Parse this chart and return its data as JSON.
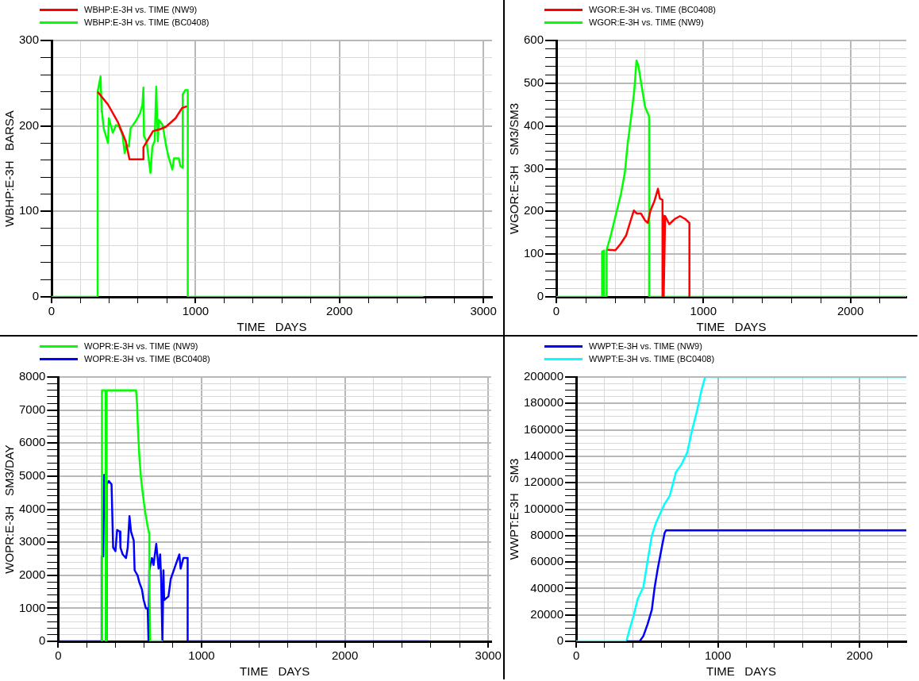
{
  "chart_data": [
    {
      "type": "line",
      "xlabel": "TIME   DAYS",
      "ylabel": "WBHP:E-3H   BARSA",
      "legend": "top left",
      "grid": true,
      "xlim": [
        0,
        3060
      ],
      "ylim": [
        0,
        300
      ],
      "xticks": [
        0,
        {
          "value": 200,
          "label": null
        },
        {
          "value": 400,
          "label": null
        },
        {
          "value": 600,
          "label": null
        },
        {
          "value": 800,
          "label": null
        },
        1000,
        {
          "value": 1200,
          "label": null
        },
        {
          "value": 1400,
          "label": null
        },
        {
          "value": 1600,
          "label": null
        },
        {
          "value": 1800,
          "label": null
        },
        2000,
        {
          "value": 2200,
          "label": null
        },
        {
          "value": 2400,
          "label": null
        },
        {
          "value": 2600,
          "label": null
        },
        {
          "value": 2800,
          "label": null
        },
        3000
      ],
      "yticks": [
        0,
        {
          "value": 20,
          "label": null
        },
        {
          "value": 40,
          "label": null
        },
        {
          "value": 60,
          "label": null
        },
        {
          "value": 80,
          "label": null
        },
        100,
        {
          "value": 120,
          "label": null
        },
        {
          "value": 140,
          "label": null
        },
        {
          "value": 160,
          "label": null
        },
        {
          "value": 180,
          "label": null
        },
        200,
        {
          "value": 220,
          "label": null
        },
        {
          "value": 240,
          "label": null
        },
        {
          "value": 260,
          "label": null
        },
        {
          "value": 280,
          "label": null
        },
        300
      ],
      "series": [
        {
          "name": "WBHP:E-3H vs. TIME (NW9)",
          "color": "#ff0000",
          "x": [
            320,
            392,
            459,
            515,
            541,
            638,
            638,
            705,
            750,
            794,
            861,
            906,
            940
          ],
          "values": [
            240,
            225,
            205,
            182,
            161,
            161,
            175,
            194,
            196,
            199,
            209,
            221,
            223
          ]
        },
        {
          "name": "WBHP:E-3H vs. TIME (BC0408)",
          "color": "#00ff00",
          "x": [
            0,
            320,
            320,
            340,
            348,
            351,
            362,
            392,
            398,
            425,
            447,
            470,
            492,
            508,
            519,
            537,
            548,
            582,
            615,
            631,
            638,
            642,
            660,
            671,
            687,
            700,
            716,
            727,
            738,
            745,
            772,
            794,
            812,
            839,
            850,
            884,
            895,
            911,
            911,
            929,
            946,
            946,
            2584
          ],
          "values": [
            0,
            0,
            240,
            258,
            217,
            215,
            197,
            180,
            209,
            192,
            201,
            199,
            190,
            168,
            178,
            176,
            197,
            205,
            215,
            225,
            245,
            188,
            182,
            166,
            145,
            176,
            182,
            246,
            182,
            207,
            201,
            178,
            164,
            149,
            162,
            162,
            153,
            151,
            237,
            242,
            242,
            0,
            0
          ]
        }
      ]
    },
    {
      "type": "line",
      "xlabel": "TIME   DAYS",
      "ylabel": "WGOR:E-3H   SM3/SM3",
      "legend": "top left",
      "grid": true,
      "xlim": [
        0,
        2380
      ],
      "ylim": [
        0,
        600
      ],
      "xticks": [
        0,
        {
          "value": 200,
          "label": null
        },
        {
          "value": 400,
          "label": null
        },
        {
          "value": 600,
          "label": null
        },
        {
          "value": 800,
          "label": null
        },
        1000,
        {
          "value": 1200,
          "label": null
        },
        {
          "value": 1400,
          "label": null
        },
        {
          "value": 1600,
          "label": null
        },
        {
          "value": 1800,
          "label": null
        },
        2000,
        {
          "value": 2200,
          "label": null
        }
      ],
      "yticks": [
        0,
        {
          "value": 20,
          "label": null
        },
        {
          "value": 40,
          "label": null
        },
        {
          "value": 60,
          "label": null
        },
        {
          "value": 80,
          "label": null
        },
        100,
        {
          "value": 120,
          "label": null
        },
        {
          "value": 140,
          "label": null
        },
        {
          "value": 160,
          "label": null
        },
        {
          "value": 180,
          "label": null
        },
        200,
        {
          "value": 220,
          "label": null
        },
        {
          "value": 240,
          "label": null
        },
        {
          "value": 260,
          "label": null
        },
        {
          "value": 280,
          "label": null
        },
        300,
        {
          "value": 320,
          "label": null
        },
        {
          "value": 340,
          "label": null
        },
        {
          "value": 360,
          "label": null
        },
        {
          "value": 380,
          "label": null
        },
        400,
        {
          "value": 420,
          "label": null
        },
        {
          "value": 440,
          "label": null
        },
        {
          "value": 460,
          "label": null
        },
        {
          "value": 480,
          "label": null
        },
        500,
        {
          "value": 520,
          "label": null
        },
        {
          "value": 540,
          "label": null
        },
        {
          "value": 560,
          "label": null
        },
        {
          "value": 580,
          "label": null
        },
        600
      ],
      "series": [
        {
          "name": "WGOR:E-3H vs. TIME (BC0408)",
          "color": "#ff0000",
          "x": [
            348,
            402,
            439,
            475,
            503,
            527,
            548,
            576,
            603,
            622,
            640,
            667,
            691,
            704,
            722,
            722,
            730,
            730,
            740,
            768,
            804,
            841,
            877,
            905,
            905
          ],
          "values": [
            110,
            109,
            125,
            144,
            176,
            202,
            195,
            195,
            179,
            173,
            202,
            224,
            253,
            230,
            227,
            0,
            190,
            0,
            189,
            170,
            182,
            189,
            182,
            173,
            0
          ]
        },
        {
          "name": "WGOR:E-3H vs. TIME (NW9)",
          "color": "#00ff00",
          "x": [
            0,
            311,
            311,
            325,
            325,
            342,
            342,
            366,
            393,
            420,
            439,
            466,
            484,
            508,
            530,
            545,
            558,
            576,
            603,
            631,
            631,
            2380
          ],
          "values": [
            0,
            0,
            106,
            108,
            0,
            0,
            110,
            138,
            176,
            214,
            240,
            291,
            355,
            419,
            483,
            553,
            541,
            502,
            445,
            422,
            0,
            0
          ]
        }
      ]
    },
    {
      "type": "line",
      "xlabel": "TIME   DAYS",
      "ylabel": "WOPR:E-3H   SM3/DAY",
      "legend": "top left",
      "grid": true,
      "xlim": [
        0,
        3020
      ],
      "ylim": [
        0,
        8000
      ],
      "xticks": [
        0,
        {
          "value": 200,
          "label": null
        },
        {
          "value": 400,
          "label": null
        },
        {
          "value": 600,
          "label": null
        },
        {
          "value": 800,
          "label": null
        },
        1000,
        {
          "value": 1200,
          "label": null
        },
        {
          "value": 1400,
          "label": null
        },
        {
          "value": 1600,
          "label": null
        },
        {
          "value": 1800,
          "label": null
        },
        2000,
        {
          "value": 2200,
          "label": null
        },
        {
          "value": 2400,
          "label": null
        },
        {
          "value": 2600,
          "label": null
        },
        {
          "value": 2800,
          "label": null
        },
        3000
      ],
      "yticks": [
        0,
        {
          "value": 200,
          "label": null
        },
        {
          "value": 400,
          "label": null
        },
        {
          "value": 600,
          "label": null
        },
        {
          "value": 800,
          "label": null
        },
        1000,
        {
          "value": 1200,
          "label": null
        },
        {
          "value": 1400,
          "label": null
        },
        {
          "value": 1600,
          "label": null
        },
        {
          "value": 1800,
          "label": null
        },
        2000,
        {
          "value": 2200,
          "label": null
        },
        {
          "value": 2400,
          "label": null
        },
        {
          "value": 2600,
          "label": null
        },
        {
          "value": 2800,
          "label": null
        },
        3000,
        {
          "value": 3200,
          "label": null
        },
        {
          "value": 3400,
          "label": null
        },
        {
          "value": 3600,
          "label": null
        },
        {
          "value": 3800,
          "label": null
        },
        4000,
        {
          "value": 4200,
          "label": null
        },
        {
          "value": 4400,
          "label": null
        },
        {
          "value": 4600,
          "label": null
        },
        {
          "value": 4800,
          "label": null
        },
        5000,
        {
          "value": 5200,
          "label": null
        },
        {
          "value": 5400,
          "label": null
        },
        {
          "value": 5600,
          "label": null
        },
        {
          "value": 5800,
          "label": null
        },
        6000,
        {
          "value": 6200,
          "label": null
        },
        {
          "value": 6400,
          "label": null
        },
        {
          "value": 6600,
          "label": null
        },
        {
          "value": 6800,
          "label": null
        },
        7000,
        {
          "value": 7200,
          "label": null
        },
        {
          "value": 7400,
          "label": null
        },
        {
          "value": 7600,
          "label": null
        },
        {
          "value": 7800,
          "label": null
        },
        8000
      ],
      "series": [
        {
          "name": "WOPR:E-3H vs. TIME (NW9)",
          "color": "#00ff00",
          "x": [
            303,
            305,
            330,
            332,
            338,
            338,
            543,
            550,
            557,
            566,
            577,
            591,
            607,
            624,
            635,
            635,
            642,
            730
          ],
          "values": [
            0,
            7600,
            7600,
            0,
            0,
            7600,
            7600,
            7180,
            6330,
            5590,
            4960,
            4430,
            3900,
            3470,
            3260,
            2150,
            0,
            0
          ]
        },
        {
          "name": "WOPR:E-3H vs. TIME (BC0408)",
          "color": "#0000ff",
          "x": [
            0,
            303,
            303,
            314,
            321,
            328,
            332,
            332,
            338,
            338,
            353,
            372,
            383,
            399,
            411,
            430,
            434,
            450,
            473,
            485,
            497,
            508,
            527,
            533,
            554,
            566,
            584,
            596,
            612,
            624,
            630,
            635,
            654,
            665,
            684,
            700,
            711,
            718,
            727,
            734,
            739,
            769,
            785,
            815,
            845,
            854,
            873,
            903,
            903,
            2587
          ],
          "values": [
            0,
            0,
            2570,
            2570,
            5040,
            3850,
            3700,
            0,
            0,
            4750,
            4850,
            4750,
            2840,
            2730,
            3370,
            3320,
            2840,
            2630,
            2520,
            2840,
            3790,
            3320,
            3050,
            2150,
            1990,
            1780,
            1570,
            1250,
            1000,
            1000,
            0,
            2150,
            2520,
            2310,
            2950,
            2200,
            2630,
            1890,
            0,
            2150,
            1250,
            1360,
            1890,
            2260,
            2630,
            2200,
            2520,
            2520,
            0,
            0
          ]
        }
      ]
    },
    {
      "type": "line",
      "xlabel": "TIME   DAYS",
      "ylabel": "WWPT:E-3H   SM3",
      "legend": "top left",
      "grid": true,
      "xlim": [
        0,
        2330
      ],
      "ylim": [
        0,
        200000
      ],
      "xticks": [
        0,
        {
          "value": 200,
          "label": null
        },
        {
          "value": 400,
          "label": null
        },
        {
          "value": 600,
          "label": null
        },
        {
          "value": 800,
          "label": null
        },
        1000,
        {
          "value": 1200,
          "label": null
        },
        {
          "value": 1400,
          "label": null
        },
        {
          "value": 1600,
          "label": null
        },
        {
          "value": 1800,
          "label": null
        },
        2000,
        {
          "value": 2200,
          "label": null
        }
      ],
      "yticks": [
        0,
        {
          "value": 5000,
          "label": null
        },
        {
          "value": 10000,
          "label": null
        },
        {
          "value": 15000,
          "label": null
        },
        20000,
        {
          "value": 25000,
          "label": null
        },
        {
          "value": 30000,
          "label": null
        },
        {
          "value": 35000,
          "label": null
        },
        40000,
        {
          "value": 45000,
          "label": null
        },
        {
          "value": 50000,
          "label": null
        },
        {
          "value": 55000,
          "label": null
        },
        60000,
        {
          "value": 65000,
          "label": null
        },
        {
          "value": 70000,
          "label": null
        },
        {
          "value": 75000,
          "label": null
        },
        80000,
        {
          "value": 85000,
          "label": null
        },
        {
          "value": 90000,
          "label": null
        },
        {
          "value": 95000,
          "label": null
        },
        100000,
        {
          "value": 105000,
          "label": null
        },
        {
          "value": 110000,
          "label": null
        },
        {
          "value": 115000,
          "label": null
        },
        120000,
        {
          "value": 125000,
          "label": null
        },
        {
          "value": 130000,
          "label": null
        },
        {
          "value": 135000,
          "label": null
        },
        140000,
        {
          "value": 145000,
          "label": null
        },
        {
          "value": 150000,
          "label": null
        },
        {
          "value": 155000,
          "label": null
        },
        160000,
        {
          "value": 165000,
          "label": null
        },
        {
          "value": 170000,
          "label": null
        },
        {
          "value": 175000,
          "label": null
        },
        180000,
        {
          "value": 185000,
          "label": null
        },
        {
          "value": 190000,
          "label": null
        },
        {
          "value": 195000,
          "label": null
        },
        200000
      ],
      "series": [
        {
          "name": "WWPT:E-3H vs. TIME (NW9)",
          "color": "#0000ff",
          "x": [
            355,
            448,
            474,
            504,
            534,
            554,
            574,
            604,
            624,
            634,
            2330
          ],
          "values": [
            0,
            0,
            4000,
            13000,
            24000,
            41000,
            54000,
            71000,
            82000,
            84000,
            84000
          ]
        },
        {
          "name": "WWPT:E-3H vs. TIME (BC0408)",
          "color": "#00ffff",
          "x": [
            0,
            354,
            374,
            404,
            434,
            474,
            504,
            534,
            564,
            594,
            624,
            660,
            704,
            744,
            784,
            814,
            854,
            884,
            910,
            2330
          ],
          "values": [
            0,
            0,
            8000,
            19000,
            32000,
            41000,
            61000,
            80000,
            90000,
            97000,
            104000,
            110000,
            128000,
            134000,
            143000,
            158000,
            175000,
            190000,
            200000,
            200000
          ]
        }
      ]
    }
  ]
}
